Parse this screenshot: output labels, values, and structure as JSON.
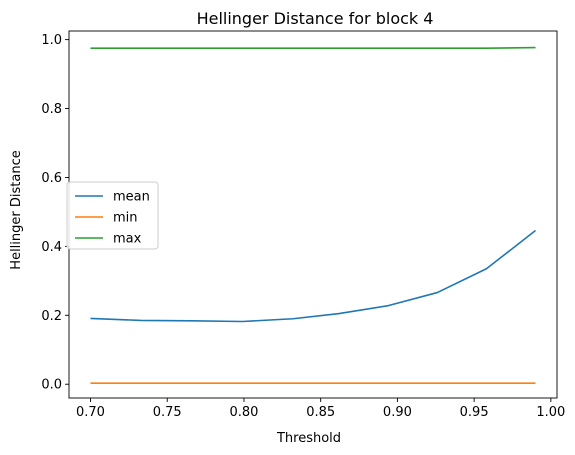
{
  "chart_data": {
    "type": "line",
    "title": "Hellinger Distance for block 4",
    "xlabel": "Threshold",
    "ylabel": "Hellinger Distance",
    "xlim": [
      0.686,
      1.004
    ],
    "ylim": [
      -0.04,
      1.025
    ],
    "xticks": [
      0.7,
      0.75,
      0.8,
      0.85,
      0.9,
      0.95,
      1.0
    ],
    "xtick_labels": [
      "0.70",
      "0.75",
      "0.80",
      "0.85",
      "0.90",
      "0.95",
      "1.00"
    ],
    "yticks": [
      0.0,
      0.2,
      0.4,
      0.6,
      0.8,
      1.0
    ],
    "ytick_labels": [
      "0.0",
      "0.2",
      "0.4",
      "0.6",
      "0.8",
      "1.0"
    ],
    "grid": false,
    "legend_position": "center-left",
    "x": [
      0.7,
      0.733,
      0.766,
      0.799,
      0.832,
      0.862,
      0.894,
      0.926,
      0.958,
      0.99
    ],
    "series": [
      {
        "name": "mean",
        "color": "#1f77b4",
        "values": [
          0.191,
          0.185,
          0.184,
          0.182,
          0.19,
          0.205,
          0.228,
          0.266,
          0.335,
          0.446
        ]
      },
      {
        "name": "min",
        "color": "#ff7f0e",
        "values": [
          0.003,
          0.003,
          0.003,
          0.003,
          0.003,
          0.003,
          0.003,
          0.003,
          0.003,
          0.003
        ]
      },
      {
        "name": "max",
        "color": "#2ca02c",
        "values": [
          0.975,
          0.975,
          0.975,
          0.975,
          0.975,
          0.975,
          0.975,
          0.975,
          0.975,
          0.977
        ]
      }
    ]
  }
}
